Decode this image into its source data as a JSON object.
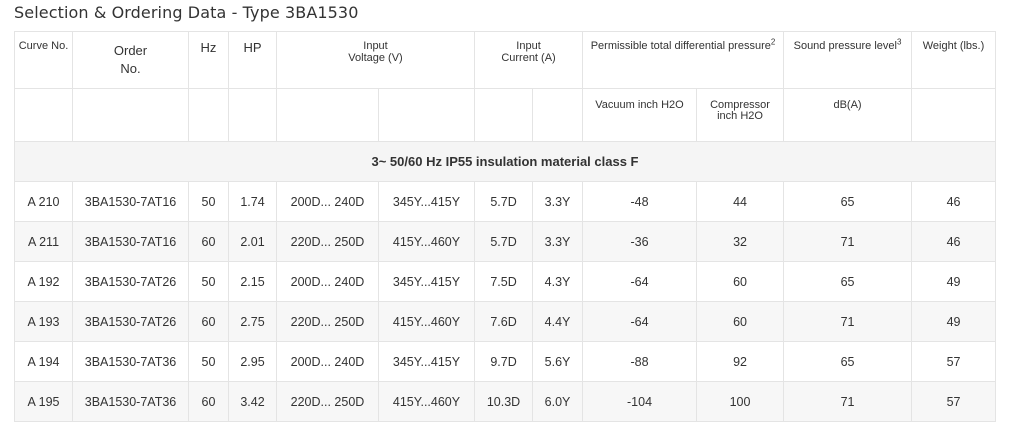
{
  "title": "Selection & Ordering Data - Type 3BA1530",
  "header": {
    "curve_no": "Curve No.",
    "order_no_1": "Order",
    "order_no_2": "No.",
    "hz": "Hz",
    "hp": "HP",
    "input_voltage_1": "Input",
    "input_voltage_2": "Voltage (V)",
    "input_current_1": "Input",
    "input_current_2": "Current (A)",
    "pressure": "Permissible total differential pressure",
    "pressure_sup": "2",
    "sound": "Sound pressure level",
    "sound_sup": "3",
    "weight": "Weight (lbs.)",
    "vacuum": "Vacuum inch H2O",
    "compressor_1": "Compressor",
    "compressor_2": "inch H2O",
    "dba": "dB(A)"
  },
  "band": "3~ 50/60 Hz IP55 insulation material class F",
  "rows": [
    {
      "curve": "A 210",
      "order": "3BA1530-7AT16",
      "hz": "50",
      "hp": "1.74",
      "v_delta": "200D... 240D",
      "v_star": "345Y...415Y",
      "i_delta": "5.7D",
      "i_star": "3.3Y",
      "vacuum": "-48",
      "compressor": "44",
      "sound": "65",
      "weight": "46"
    },
    {
      "curve": "A 211",
      "order": "3BA1530-7AT16",
      "hz": "60",
      "hp": "2.01",
      "v_delta": "220D... 250D",
      "v_star": "415Y...460Y",
      "i_delta": "5.7D",
      "i_star": "3.3Y",
      "vacuum": "-36",
      "compressor": "32",
      "sound": "71",
      "weight": "46"
    },
    {
      "curve": "A 192",
      "order": "3BA1530-7AT26",
      "hz": "50",
      "hp": "2.15",
      "v_delta": "200D... 240D",
      "v_star": "345Y...415Y",
      "i_delta": "7.5D",
      "i_star": "4.3Y",
      "vacuum": "-64",
      "compressor": "60",
      "sound": "65",
      "weight": "49"
    },
    {
      "curve": "A 193",
      "order": "3BA1530-7AT26",
      "hz": "60",
      "hp": "2.75",
      "v_delta": "220D... 250D",
      "v_star": "415Y...460Y",
      "i_delta": "7.6D",
      "i_star": "4.4Y",
      "vacuum": "-64",
      "compressor": "60",
      "sound": "71",
      "weight": "49"
    },
    {
      "curve": "A 194",
      "order": "3BA1530-7AT36",
      "hz": "50",
      "hp": "2.95",
      "v_delta": "200D... 240D",
      "v_star": "345Y...415Y",
      "i_delta": "9.7D",
      "i_star": "5.6Y",
      "vacuum": "-88",
      "compressor": "92",
      "sound": "65",
      "weight": "57"
    },
    {
      "curve": "A 195",
      "order": "3BA1530-7AT36",
      "hz": "60",
      "hp": "3.42",
      "v_delta": "220D... 250D",
      "v_star": "415Y...460Y",
      "i_delta": "10.3D",
      "i_star": "6.0Y",
      "vacuum": "-104",
      "compressor": "100",
      "sound": "71",
      "weight": "57"
    }
  ]
}
